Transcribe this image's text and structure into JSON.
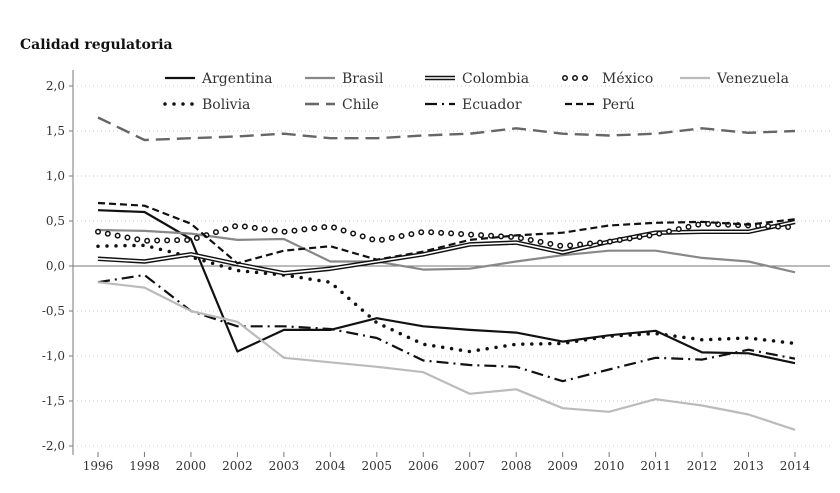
{
  "chart_data": {
    "type": "line",
    "title": "Calidad regulatoria",
    "xlabel": "",
    "ylabel": "",
    "ylim": [
      -2.0,
      2.0
    ],
    "yticks": [
      "2,0",
      "1,5",
      "1,0",
      "0,5",
      "0,0",
      "-0,5",
      "-1,0",
      "-1,5",
      "-2,0"
    ],
    "ytick_values": [
      2.0,
      1.5,
      1.0,
      0.5,
      0.0,
      -0.5,
      -1.0,
      -1.5,
      -2.0
    ],
    "grid": true,
    "legend_placement": "top",
    "x": [
      "1996",
      "1998",
      "2000",
      "2002",
      "2003",
      "2004",
      "2005",
      "2006",
      "2007",
      "2008",
      "2009",
      "2010",
      "2011",
      "2012",
      "2013",
      "2014"
    ],
    "series": [
      {
        "name": "Argentina",
        "color": "#111111",
        "style": "solid",
        "values": [
          0.62,
          0.6,
          0.3,
          -0.95,
          -0.71,
          -0.71,
          -0.58,
          -0.67,
          -0.71,
          -0.74,
          -0.84,
          -0.77,
          -0.72,
          -0.96,
          -0.97,
          -1.08
        ]
      },
      {
        "name": "Bolivia",
        "color": "#111111",
        "style": "dotted",
        "values": [
          0.22,
          0.23,
          0.1,
          -0.05,
          -0.1,
          -0.18,
          -0.63,
          -0.87,
          -0.95,
          -0.87,
          -0.86,
          -0.78,
          -0.75,
          -0.82,
          -0.8,
          -0.86
        ]
      },
      {
        "name": "Brasil",
        "color": "#888888",
        "style": "solid",
        "values": [
          0.4,
          0.39,
          0.36,
          0.29,
          0.3,
          0.05,
          0.05,
          -0.04,
          -0.03,
          0.05,
          0.12,
          0.17,
          0.17,
          0.09,
          0.05,
          -0.07
        ]
      },
      {
        "name": "Chile",
        "color": "#666666",
        "style": "longdash",
        "values": [
          1.65,
          1.4,
          1.42,
          1.44,
          1.47,
          1.42,
          1.42,
          1.45,
          1.47,
          1.53,
          1.47,
          1.45,
          1.47,
          1.53,
          1.48,
          1.5
        ]
      },
      {
        "name": "Colombia",
        "color": "#111111",
        "style": "double",
        "values": [
          0.08,
          0.05,
          0.13,
          0.02,
          -0.08,
          -0.03,
          0.05,
          0.13,
          0.24,
          0.26,
          0.15,
          0.27,
          0.37,
          0.38,
          0.38,
          0.49
        ]
      },
      {
        "name": "Ecuador",
        "color": "#111111",
        "style": "dashdot",
        "values": [
          -0.18,
          -0.1,
          -0.5,
          -0.67,
          -0.67,
          -0.7,
          -0.8,
          -1.05,
          -1.1,
          -1.12,
          -1.28,
          -1.15,
          -1.02,
          -1.04,
          -0.93,
          -1.03
        ]
      },
      {
        "name": "México",
        "color": "#111111",
        "style": "circles",
        "values": [
          0.38,
          0.28,
          0.29,
          0.45,
          0.38,
          0.44,
          0.28,
          0.38,
          0.35,
          0.32,
          0.22,
          0.27,
          0.35,
          0.47,
          0.45,
          0.43
        ]
      },
      {
        "name": "Perú",
        "color": "#111111",
        "style": "dashed",
        "values": [
          0.7,
          0.67,
          0.47,
          0.03,
          0.17,
          0.22,
          0.07,
          0.16,
          0.29,
          0.34,
          0.37,
          0.45,
          0.48,
          0.49,
          0.46,
          0.52
        ]
      },
      {
        "name": "Venezuela",
        "color": "#bbbbbb",
        "style": "solid",
        "values": [
          -0.18,
          -0.24,
          -0.5,
          -0.62,
          -1.02,
          -1.07,
          -1.12,
          -1.18,
          -1.42,
          -1.37,
          -1.58,
          -1.62,
          -1.48,
          -1.55,
          -1.65,
          -1.82
        ]
      }
    ]
  }
}
